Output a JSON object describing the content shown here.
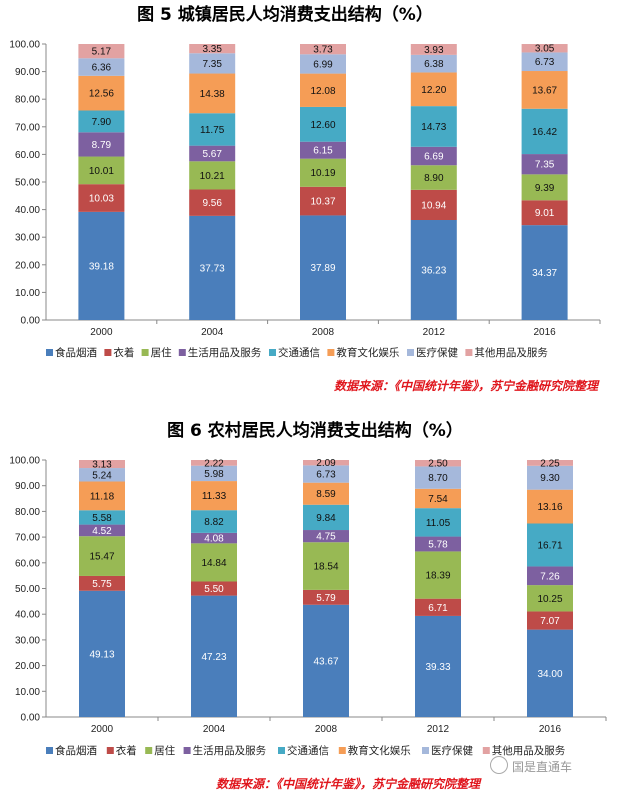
{
  "colors": [
    "#4a7ebb",
    "#be4b48",
    "#98b954",
    "#7d60a0",
    "#46aac5",
    "#f59d56",
    "#a5b8db",
    "#e2a2a2"
  ],
  "categories_legend": [
    "食品烟酒",
    "衣着",
    "居住",
    "生活用品及服务",
    "交通通信",
    "教育文化娱乐",
    "医疗保健",
    "其他用品及服务"
  ],
  "chart_data": [
    {
      "type": "bar",
      "stacked": true,
      "title": "图 5  城镇居民人均消费支出结构（%）",
      "source": "数据来源：《中国统计年鉴》，苏宁金融研究院整理",
      "categories": [
        "2000",
        "2004",
        "2008",
        "2012",
        "2016"
      ],
      "ylim": [
        0,
        100
      ],
      "yticks": [
        "0.00",
        "10.00",
        "20.00",
        "30.00",
        "40.00",
        "50.00",
        "60.00",
        "70.00",
        "80.00",
        "90.00",
        "100.00"
      ],
      "legend_position": "bottom",
      "series": [
        {
          "name": "食品烟酒",
          "values": [
            39.18,
            37.73,
            37.89,
            36.23,
            34.37
          ],
          "labels": [
            "39.18",
            "37.73",
            "37.89",
            "36.23",
            "34.37"
          ]
        },
        {
          "name": "衣着",
          "values": [
            10.03,
            9.56,
            10.37,
            10.94,
            9.01
          ],
          "labels": [
            "10.03",
            "9.56",
            "10.37",
            "10.94",
            "9.01"
          ]
        },
        {
          "name": "居住",
          "values": [
            10.01,
            10.21,
            10.19,
            8.9,
            9.39
          ],
          "labels": [
            "10.01",
            "10.21",
            "10.19",
            "8.90",
            "9.39"
          ]
        },
        {
          "name": "生活用品及服务",
          "values": [
            8.79,
            5.67,
            6.15,
            6.69,
            7.35
          ],
          "labels": [
            "8.79",
            "5.67",
            "6.15",
            "6.69",
            "7.35"
          ]
        },
        {
          "name": "交通通信",
          "values": [
            7.9,
            11.75,
            12.6,
            14.73,
            16.42
          ],
          "labels": [
            "7.90",
            "11.75",
            "12.60",
            "14.73",
            "16.42"
          ]
        },
        {
          "name": "教育文化娱乐",
          "values": [
            12.56,
            14.38,
            12.08,
            12.2,
            13.67
          ],
          "labels": [
            "12.56",
            "14.38",
            "12.08",
            "12.20",
            "13.67"
          ]
        },
        {
          "name": "医疗保健",
          "values": [
            6.36,
            7.35,
            6.99,
            6.38,
            6.73
          ],
          "labels": [
            "6.36",
            "7.35",
            "6.99",
            "6.38",
            "6.73"
          ]
        },
        {
          "name": "其他用品及服务",
          "values": [
            5.17,
            3.35,
            3.73,
            3.93,
            3.05
          ],
          "labels": [
            "5.17",
            "3.35",
            "3.73",
            "3.93",
            "3.05"
          ]
        }
      ]
    },
    {
      "type": "bar",
      "stacked": true,
      "title": "图 6   农村居民人均消费支出结构（%）",
      "source": "数据来源：《中国统计年鉴》，苏宁金融研究院整理",
      "categories": [
        "2000",
        "2004",
        "2008",
        "2012",
        "2016"
      ],
      "ylim": [
        0,
        100
      ],
      "yticks": [
        "0.00",
        "10.00",
        "20.00",
        "30.00",
        "40.00",
        "50.00",
        "60.00",
        "70.00",
        "80.00",
        "90.00",
        "100.00"
      ],
      "legend_position": "bottom",
      "series": [
        {
          "name": "食品烟酒",
          "values": [
            49.13,
            47.23,
            43.67,
            39.33,
            34.0
          ],
          "labels": [
            "49.13",
            "47.23",
            "43.67",
            "39.33",
            "34.00"
          ]
        },
        {
          "name": "衣着",
          "values": [
            5.75,
            5.5,
            5.79,
            6.71,
            7.07
          ],
          "labels": [
            "5.75",
            "5.50",
            "5.79",
            "6.71",
            "7.07"
          ]
        },
        {
          "name": "居住",
          "values": [
            15.47,
            14.84,
            18.54,
            18.39,
            10.25
          ],
          "labels": [
            "15.47",
            "14.84",
            "18.54",
            "18.39",
            "10.25"
          ]
        },
        {
          "name": "生活用品及服务",
          "values": [
            4.52,
            4.08,
            4.75,
            5.78,
            7.26
          ],
          "labels": [
            "4.52",
            "4.08",
            "4.75",
            "5.78",
            "7.26"
          ]
        },
        {
          "name": "交通通信",
          "values": [
            5.58,
            8.82,
            9.84,
            11.05,
            16.71
          ],
          "labels": [
            "5.58",
            "8.82",
            "9.84",
            "11.05",
            "16.71"
          ]
        },
        {
          "name": "教育文化娱乐",
          "values": [
            11.18,
            11.33,
            8.59,
            7.54,
            13.16
          ],
          "labels": [
            "11.18",
            "11.33",
            "8.59",
            "7.54",
            "13.16"
          ]
        },
        {
          "name": "医疗保健",
          "values": [
            5.24,
            5.98,
            6.73,
            8.7,
            9.3
          ],
          "labels": [
            "5.24",
            "5.98",
            "6.73",
            "8.70",
            "9.30"
          ]
        },
        {
          "name": "其他用品及服务",
          "values": [
            3.13,
            2.22,
            2.09,
            2.5,
            2.25
          ],
          "labels": [
            "3.13",
            "2.22",
            "2.09",
            "2.50",
            "2.25"
          ]
        }
      ]
    }
  ],
  "watermark": {
    "text": "国是直通车",
    "icon": "wechat-icon"
  }
}
